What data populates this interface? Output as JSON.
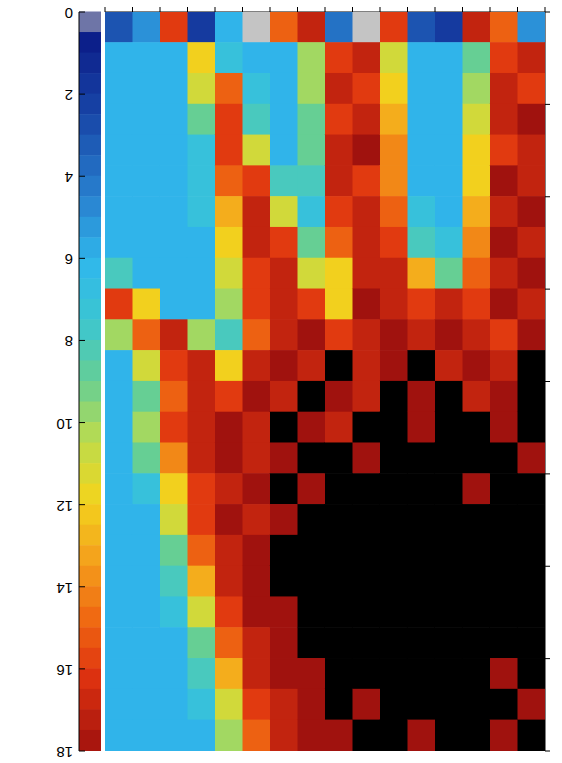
{
  "chart_data": {
    "type": "heatmap",
    "x": [
      0.5,
      1.5,
      2.5,
      3.5,
      4.5,
      5.5,
      6.5,
      7.5,
      8.5,
      9.5,
      10.5,
      11.5,
      12.5,
      13.5,
      14.5,
      15.5
    ],
    "y": [
      0.5,
      1.5,
      2.5,
      3.5,
      4.5,
      5.5,
      6.5,
      7.5,
      8.5,
      9.5,
      10.5,
      11.5,
      12.5,
      13.5,
      14.5,
      15.5,
      16.5,
      17.5,
      18.5,
      19.5,
      20.5,
      21.5,
      22.5,
      23.5
    ],
    "cells": [
      [
        5,
        15,
        17,
        2,
        3,
        16,
        0,
        4,
        17,
        15,
        0,
        6,
        2,
        16,
        5,
        3
      ],
      [
        17,
        16,
        9,
        6,
        6,
        11,
        17,
        16,
        10,
        6,
        6,
        7,
        12,
        6,
        6,
        6
      ],
      [
        16,
        17,
        10,
        6,
        6,
        12,
        16,
        17,
        10,
        6,
        7,
        15,
        11,
        6,
        6,
        6
      ],
      [
        18,
        17,
        11,
        6,
        6,
        13,
        17,
        16,
        9,
        6,
        8,
        16,
        9,
        6,
        6,
        6
      ],
      [
        17,
        16,
        12,
        6,
        6,
        14,
        18,
        17,
        9,
        6,
        11,
        16,
        7,
        6,
        6,
        6
      ],
      [
        17,
        18,
        12,
        6,
        6,
        14,
        16,
        17,
        8,
        8,
        16,
        15,
        7,
        6,
        6,
        6
      ],
      [
        18,
        17,
        13,
        6,
        7,
        15,
        17,
        16,
        7,
        11,
        17,
        13,
        7,
        6,
        6,
        6
      ],
      [
        17,
        18,
        14,
        7,
        8,
        16,
        17,
        15,
        9,
        16,
        17,
        12,
        6,
        6,
        6,
        6
      ],
      [
        18,
        17,
        15,
        9,
        13,
        17,
        17,
        12,
        11,
        17,
        16,
        11,
        6,
        6,
        6,
        8
      ],
      [
        17,
        18,
        16,
        17,
        16,
        17,
        18,
        12,
        16,
        17,
        16,
        10,
        6,
        6,
        12,
        16
      ],
      [
        18,
        16,
        17,
        18,
        17,
        18,
        17,
        16,
        18,
        17,
        15,
        8,
        10,
        17,
        15,
        10
      ],
      [
        20,
        17,
        18,
        17,
        20,
        18,
        17,
        20,
        17,
        18,
        17,
        12,
        17,
        16,
        11,
        6
      ],
      [
        20,
        18,
        17,
        20,
        18,
        20,
        17,
        18,
        20,
        17,
        18,
        16,
        17,
        15,
        9,
        6
      ],
      [
        20,
        18,
        20,
        20,
        18,
        20,
        20,
        17,
        18,
        20,
        17,
        18,
        17,
        16,
        10,
        6
      ],
      [
        18,
        20,
        20,
        20,
        20,
        20,
        18,
        20,
        20,
        18,
        17,
        18,
        17,
        14,
        9,
        6
      ],
      [
        20,
        20,
        18,
        20,
        20,
        20,
        20,
        20,
        18,
        20,
        18,
        17,
        16,
        12,
        7,
        6
      ],
      [
        20,
        20,
        20,
        20,
        20,
        20,
        20,
        20,
        20,
        18,
        17,
        18,
        16,
        11,
        6,
        6
      ],
      [
        20,
        20,
        20,
        20,
        20,
        20,
        20,
        20,
        20,
        20,
        18,
        17,
        15,
        9,
        6,
        6
      ],
      [
        20,
        20,
        20,
        20,
        20,
        20,
        20,
        20,
        20,
        20,
        18,
        17,
        13,
        8,
        6,
        6
      ],
      [
        20,
        20,
        20,
        20,
        20,
        20,
        20,
        20,
        20,
        18,
        18,
        16,
        11,
        7,
        6,
        6
      ],
      [
        20,
        20,
        20,
        20,
        20,
        20,
        20,
        20,
        20,
        18,
        17,
        15,
        9,
        6,
        6,
        6
      ],
      [
        20,
        18,
        20,
        20,
        20,
        20,
        20,
        20,
        18,
        18,
        17,
        13,
        8,
        6,
        6,
        6
      ],
      [
        18,
        20,
        20,
        20,
        20,
        20,
        18,
        20,
        18,
        17,
        16,
        11,
        7,
        6,
        6,
        6
      ],
      [
        20,
        18,
        20,
        20,
        18,
        20,
        20,
        18,
        18,
        17,
        15,
        10,
        6,
        6,
        6,
        6
      ]
    ],
    "xlim": [
      0,
      16
    ],
    "ylim": [
      0,
      24
    ],
    "xticks": [
      0,
      1,
      2,
      3,
      4,
      5,
      6,
      7,
      8,
      9,
      10,
      11,
      12,
      13,
      14,
      15,
      16
    ],
    "yticks": [
      0,
      3,
      6,
      9,
      12,
      15,
      18,
      21,
      24
    ],
    "tick_labels": false,
    "colorbar": {
      "range": [
        0,
        18
      ],
      "ticks": [
        0,
        2,
        4,
        6,
        8,
        10,
        12,
        14,
        16,
        18
      ]
    }
  }
}
